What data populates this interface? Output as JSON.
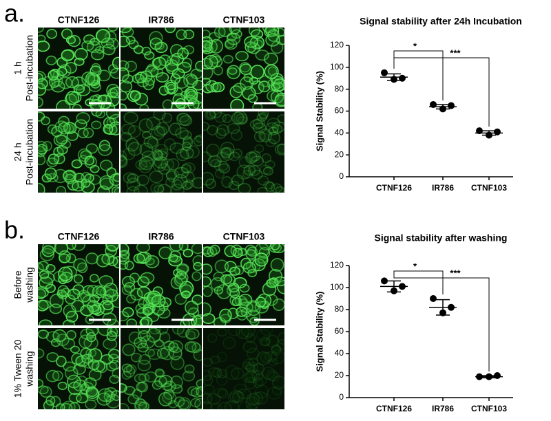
{
  "panels": [
    {
      "label": "a.",
      "columns": [
        "CTNF126",
        "IR786",
        "CTNF103"
      ],
      "rows": [
        [
          "1 h",
          "Post-incubation"
        ],
        [
          "24 h",
          "Post-incubation"
        ]
      ]
    },
    {
      "label": "b.",
      "columns": [
        "CTNF126",
        "IR786",
        "CTNF103"
      ],
      "rows": [
        [
          "Before",
          "washing"
        ],
        [
          "1% Tween 20",
          "washing"
        ]
      ]
    }
  ],
  "chart_data": [
    {
      "type": "dot",
      "title": "Signal stability after 24h Incubation",
      "ylabel": "Signal Stability (%)",
      "categories": [
        "CTNF126",
        "IR786",
        "CTNF103"
      ],
      "points": [
        [
          95,
          89,
          90
        ],
        [
          66,
          62,
          65
        ],
        [
          42,
          38,
          41
        ]
      ],
      "means": [
        91,
        64,
        40
      ],
      "sd": [
        3,
        2,
        2
      ],
      "ylim": [
        0,
        120
      ],
      "yticks": [
        0,
        20,
        40,
        60,
        80,
        100,
        120
      ],
      "significance": [
        "*",
        "***"
      ]
    },
    {
      "type": "dot",
      "title": "Signal stability after washing",
      "ylabel": "Signal Stability (%)",
      "categories": [
        "CTNF126",
        "IR786",
        "CTNF103"
      ],
      "points": [
        [
          106,
          97,
          101
        ],
        [
          90,
          77,
          82
        ],
        [
          19,
          19,
          20
        ]
      ],
      "means": [
        101,
        82,
        19
      ],
      "sd": [
        5,
        7,
        1
      ],
      "ylim": [
        0,
        120
      ],
      "yticks": [
        0,
        20,
        40,
        60,
        80,
        100,
        120
      ],
      "significance": [
        "*",
        "***"
      ]
    }
  ]
}
